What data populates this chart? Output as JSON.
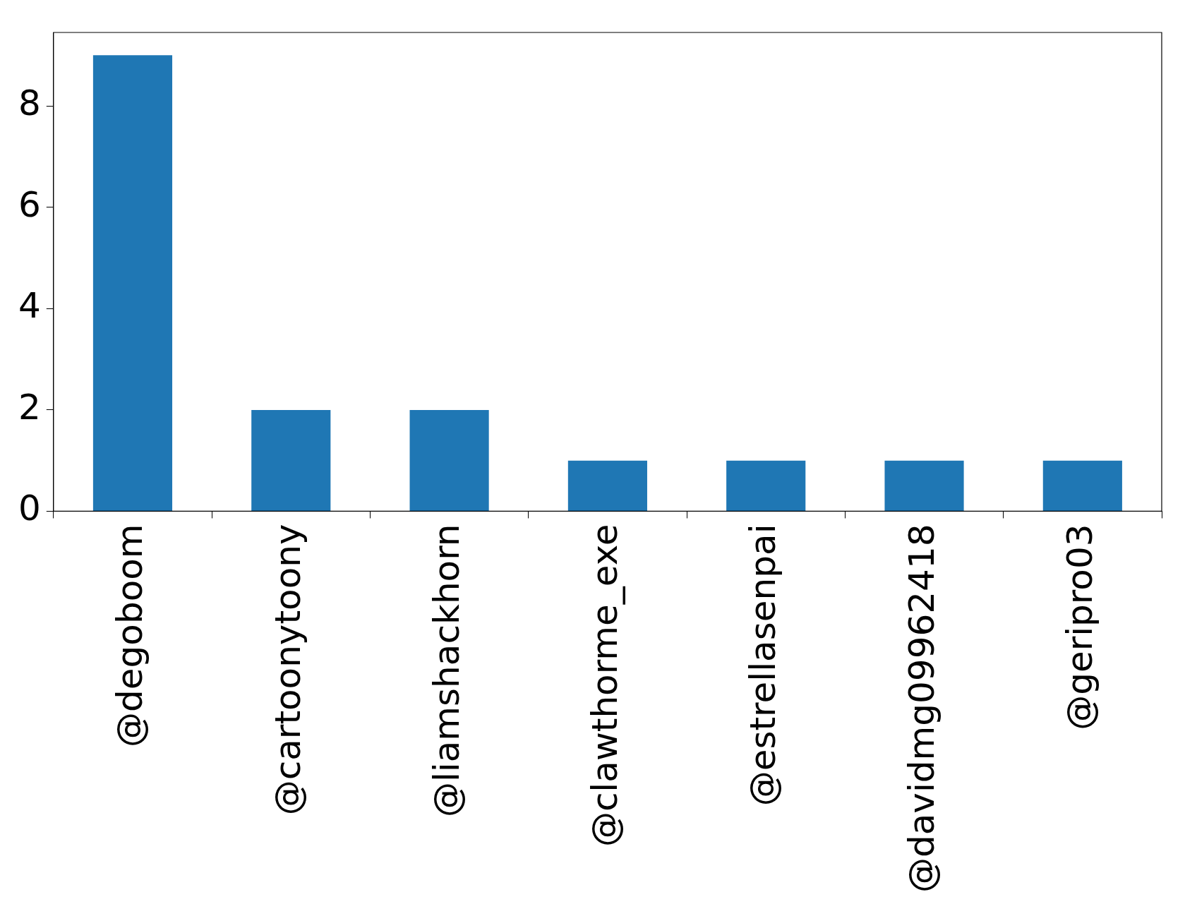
{
  "chart_data": {
    "type": "bar",
    "categories": [
      "@degoboom",
      "@cartoonytoony",
      "@liamshackhorn",
      "@clawthorme_exe",
      "@estrellasenpai",
      "@davidmg09962418",
      "@geripro03"
    ],
    "values": [
      9,
      2,
      2,
      1,
      1,
      1,
      1
    ],
    "color": "#1f77b4",
    "ylim": [
      0,
      9.45
    ],
    "yticks": [
      0,
      2,
      4,
      6,
      8
    ],
    "grid": false,
    "legend": false
  }
}
